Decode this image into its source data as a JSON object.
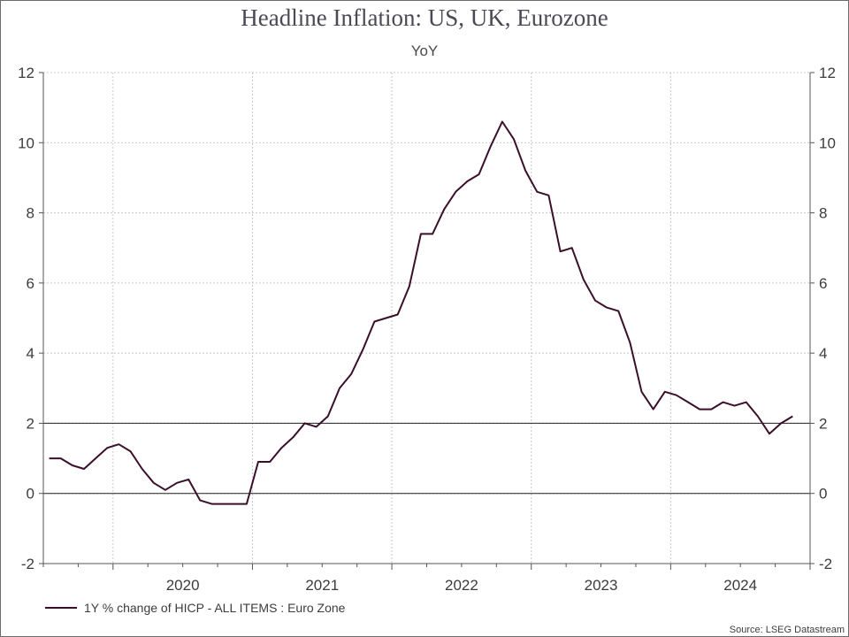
{
  "title": "Headline Inflation: US, UK, Eurozone",
  "subtitle": "YoY",
  "source": "Source: LSEG Datastream",
  "colors": {
    "series": "#3b0f2a",
    "grid": "#c8c8c8",
    "axis": "#555555"
  },
  "chart_data": {
    "type": "line",
    "title": "Headline Inflation: US, UK, Eurozone",
    "subtitle": "YoY",
    "ylim": [
      -2,
      12
    ],
    "yticks": [
      -2,
      0,
      2,
      4,
      6,
      8,
      10,
      12
    ],
    "y_tick_labels": [
      "-2",
      "0",
      "2",
      "4",
      "6",
      "8",
      "10",
      "12"
    ],
    "y_axis_both_sides": true,
    "xlim": [
      "2019-07",
      "2024-12"
    ],
    "x_tick_labels": [
      "2020",
      "2021",
      "2022",
      "2023",
      "2024"
    ],
    "grid": true,
    "reference_lines": [
      0,
      2
    ],
    "legend_position": "bottom-left",
    "series": [
      {
        "name": "1Y % change of HICP - ALL ITEMS : Euro Zone",
        "x": [
          "2019-07",
          "2019-08",
          "2019-09",
          "2019-10",
          "2019-11",
          "2019-12",
          "2020-01",
          "2020-02",
          "2020-03",
          "2020-04",
          "2020-05",
          "2020-06",
          "2020-07",
          "2020-08",
          "2020-09",
          "2020-10",
          "2020-11",
          "2020-12",
          "2021-01",
          "2021-02",
          "2021-03",
          "2021-04",
          "2021-05",
          "2021-06",
          "2021-07",
          "2021-08",
          "2021-09",
          "2021-10",
          "2021-11",
          "2021-12",
          "2022-01",
          "2022-02",
          "2022-03",
          "2022-04",
          "2022-05",
          "2022-06",
          "2022-07",
          "2022-08",
          "2022-09",
          "2022-10",
          "2022-11",
          "2022-12",
          "2023-01",
          "2023-02",
          "2023-03",
          "2023-04",
          "2023-05",
          "2023-06",
          "2023-07",
          "2023-08",
          "2023-09",
          "2023-10",
          "2023-11",
          "2023-12",
          "2024-01",
          "2024-02",
          "2024-03",
          "2024-04",
          "2024-05",
          "2024-06",
          "2024-07",
          "2024-08",
          "2024-09",
          "2024-10",
          "2024-11"
        ],
        "values": [
          1.0,
          1.0,
          0.8,
          0.7,
          1.0,
          1.3,
          1.4,
          1.2,
          0.7,
          0.3,
          0.1,
          0.3,
          0.4,
          -0.2,
          -0.3,
          -0.3,
          -0.3,
          -0.3,
          0.9,
          0.9,
          1.3,
          1.6,
          2.0,
          1.9,
          2.2,
          3.0,
          3.4,
          4.1,
          4.9,
          5.0,
          5.1,
          5.9,
          7.4,
          7.4,
          8.1,
          8.6,
          8.9,
          9.1,
          9.9,
          10.6,
          10.1,
          9.2,
          8.6,
          8.5,
          6.9,
          7.0,
          6.1,
          5.5,
          5.3,
          5.2,
          4.3,
          2.9,
          2.4,
          2.9,
          2.8,
          2.6,
          2.4,
          2.4,
          2.6,
          2.5,
          2.6,
          2.2,
          1.7,
          2.0,
          2.2
        ]
      }
    ]
  }
}
